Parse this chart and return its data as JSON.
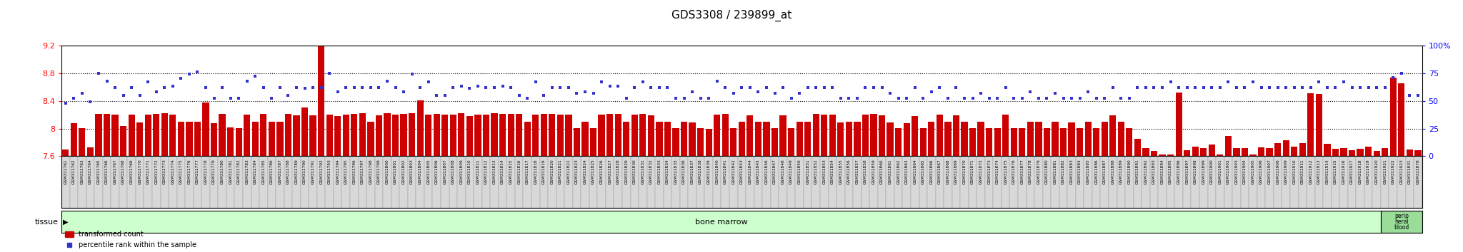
{
  "title": "GDS3308 / 239899_at",
  "ylim_left": [
    7.6,
    9.2
  ],
  "ylim_right": [
    0,
    100
  ],
  "yticks_left": [
    7.6,
    8.0,
    8.4,
    8.8,
    9.2
  ],
  "ytick_labels_left": [
    "7.6",
    "8",
    "8.4",
    "8.8",
    "9.2"
  ],
  "yticks_right": [
    0,
    25,
    50,
    75,
    100
  ],
  "ytick_labels_right": [
    "0",
    "25",
    "50",
    "75",
    "100%"
  ],
  "bar_color": "#cc0000",
  "dot_color": "#3333cc",
  "bar_bottom": 7.6,
  "legend_entries": [
    "transformed count",
    "percentile rank within the sample"
  ],
  "tissue_label": "tissue",
  "tissue_color": "#ccffcc",
  "bone_marrow_label": "bone marrow",
  "peripheral_blood_label": "perip\nheral\nblood",
  "samples": [
    "GSM311761",
    "GSM311762",
    "GSM311763",
    "GSM311764",
    "GSM311765",
    "GSM311766",
    "GSM311767",
    "GSM311768",
    "GSM311769",
    "GSM311770",
    "GSM311771",
    "GSM311772",
    "GSM311773",
    "GSM311774",
    "GSM311775",
    "GSM311776",
    "GSM311777",
    "GSM311778",
    "GSM311779",
    "GSM311780",
    "GSM311781",
    "GSM311782",
    "GSM311783",
    "GSM311784",
    "GSM311785",
    "GSM311786",
    "GSM311787",
    "GSM311788",
    "GSM311789",
    "GSM311790",
    "GSM311791",
    "GSM311792",
    "GSM311793",
    "GSM311794",
    "GSM311795",
    "GSM311796",
    "GSM311797",
    "GSM311798",
    "GSM311799",
    "GSM311800",
    "GSM311801",
    "GSM311802",
    "GSM311803",
    "GSM311804",
    "GSM311805",
    "GSM311806",
    "GSM311807",
    "GSM311808",
    "GSM311809",
    "GSM311810",
    "GSM311811",
    "GSM311812",
    "GSM311813",
    "GSM311814",
    "GSM311815",
    "GSM311816",
    "GSM311817",
    "GSM311818",
    "GSM311819",
    "GSM311820",
    "GSM311821",
    "GSM311822",
    "GSM311823",
    "GSM311824",
    "GSM311825",
    "GSM311826",
    "GSM311827",
    "GSM311828",
    "GSM311829",
    "GSM311830",
    "GSM311831",
    "GSM311832",
    "GSM311833",
    "GSM311834",
    "GSM311835",
    "GSM311836",
    "GSM311837",
    "GSM311838",
    "GSM311839",
    "GSM311840",
    "GSM311841",
    "GSM311842",
    "GSM311843",
    "GSM311844",
    "GSM311845",
    "GSM311846",
    "GSM311847",
    "GSM311848",
    "GSM311849",
    "GSM311850",
    "GSM311851",
    "GSM311852",
    "GSM311853",
    "GSM311854",
    "GSM311855",
    "GSM311856",
    "GSM311857",
    "GSM311858",
    "GSM311859",
    "GSM311860",
    "GSM311861",
    "GSM311862",
    "GSM311863",
    "GSM311864",
    "GSM311865",
    "GSM311866",
    "GSM311867",
    "GSM311868",
    "GSM311869",
    "GSM311870",
    "GSM311871",
    "GSM311872",
    "GSM311873",
    "GSM311874",
    "GSM311875",
    "GSM311876",
    "GSM311877",
    "GSM311878",
    "GSM311879",
    "GSM311880",
    "GSM311881",
    "GSM311882",
    "GSM311883",
    "GSM311884",
    "GSM311885",
    "GSM311886",
    "GSM311887",
    "GSM311888",
    "GSM311889",
    "GSM311890",
    "GSM311891",
    "GSM311892",
    "GSM311893",
    "GSM311894",
    "GSM311895",
    "GSM311896",
    "GSM311897",
    "GSM311898",
    "GSM311899",
    "GSM311900",
    "GSM311901",
    "GSM311902",
    "GSM311903",
    "GSM311904",
    "GSM311905",
    "GSM311906",
    "GSM311907",
    "GSM311908",
    "GSM311909",
    "GSM311910",
    "GSM311911",
    "GSM311912",
    "GSM311913",
    "GSM311914",
    "GSM311915",
    "GSM311916",
    "GSM311917",
    "GSM311918",
    "GSM311919",
    "GSM311920",
    "GSM311921",
    "GSM311922",
    "GSM311923",
    "GSM311831",
    "GSM311878"
  ],
  "bar_values": [
    7.7,
    8.08,
    8.01,
    7.73,
    8.21,
    8.21,
    8.2,
    8.04,
    8.2,
    8.09,
    8.2,
    8.21,
    8.22,
    8.2,
    8.1,
    8.1,
    8.1,
    8.38,
    8.08,
    8.21,
    8.02,
    8.01,
    8.2,
    8.1,
    8.21,
    8.1,
    8.1,
    8.21,
    8.19,
    8.3,
    8.19,
    9.2,
    8.2,
    8.18,
    8.2,
    8.21,
    8.22,
    8.1,
    8.19,
    8.22,
    8.2,
    8.21,
    8.22,
    8.41,
    8.2,
    8.21,
    8.2,
    8.2,
    8.22,
    8.18,
    8.2,
    8.2,
    8.22,
    8.21,
    8.21,
    8.21,
    8.1,
    8.2,
    8.21,
    8.21,
    8.2,
    8.2,
    8.01,
    8.1,
    8.01,
    8.2,
    8.21,
    8.21,
    8.1,
    8.2,
    8.21,
    8.19,
    8.1,
    8.1,
    8.01,
    8.1,
    8.09,
    8.01,
    8.0,
    8.2,
    8.21,
    8.01,
    8.1,
    8.19,
    8.1,
    8.1,
    8.01,
    8.19,
    8.01,
    8.1,
    8.1,
    8.21,
    8.2,
    8.2,
    8.09,
    8.1,
    8.1,
    8.2,
    8.21,
    8.19,
    8.09,
    8.01,
    8.08,
    8.18,
    8.01,
    8.1,
    8.2,
    8.1,
    8.19,
    8.1,
    8.01,
    8.1,
    8.01,
    8.01,
    8.2,
    8.01,
    8.01,
    8.1,
    8.1,
    8.01,
    8.1,
    8.01,
    8.09,
    8.01,
    8.1,
    8.01,
    8.1,
    8.19,
    8.1,
    8.01,
    7.85,
    7.72,
    7.68,
    7.63,
    7.63,
    8.52,
    7.69,
    7.74,
    7.72,
    7.77,
    7.63,
    7.89,
    7.72,
    7.72,
    7.63,
    7.73,
    7.72,
    7.79,
    7.83,
    7.74,
    7.79,
    8.51,
    8.5,
    7.78,
    7.71,
    7.72,
    7.69,
    7.71,
    7.74,
    7.68,
    7.72,
    8.73,
    8.65,
    7.7,
    7.69
  ],
  "dot_percentiles": [
    48,
    52,
    57,
    49,
    75,
    68,
    62,
    55,
    62,
    55,
    67,
    58,
    62,
    63,
    70,
    74,
    76,
    62,
    52,
    62,
    52,
    52,
    68,
    72,
    62,
    52,
    62,
    55,
    62,
    61,
    62,
    62,
    75,
    58,
    62,
    62,
    62,
    62,
    62,
    68,
    62,
    58,
    74,
    62,
    67,
    55,
    55,
    62,
    63,
    61,
    63,
    62,
    62,
    63,
    62,
    55,
    52,
    67,
    55,
    62,
    62,
    62,
    57,
    58,
    57,
    67,
    63,
    63,
    52,
    62,
    67,
    62,
    62,
    62,
    52,
    52,
    58,
    52,
    52,
    68,
    62,
    57,
    62,
    62,
    58,
    62,
    57,
    62,
    52,
    57,
    62,
    62,
    62,
    62,
    52,
    52,
    52,
    62,
    62,
    62,
    57,
    52,
    52,
    62,
    52,
    58,
    62,
    52,
    62,
    52,
    52,
    57,
    52,
    52,
    62,
    52,
    52,
    58,
    52,
    52,
    57,
    52,
    52,
    52,
    58,
    52,
    52,
    62,
    52,
    52,
    62,
    62,
    62,
    62,
    67,
    62,
    62,
    62,
    62,
    62,
    62,
    67,
    62,
    62,
    67,
    62,
    62,
    62,
    62,
    62,
    62,
    62,
    67,
    62,
    62,
    67,
    62,
    62,
    62,
    62,
    62,
    71,
    75,
    55,
    55
  ],
  "bone_marrow_count": 160,
  "peripheral_blood_count": 5,
  "bg_color": "white"
}
